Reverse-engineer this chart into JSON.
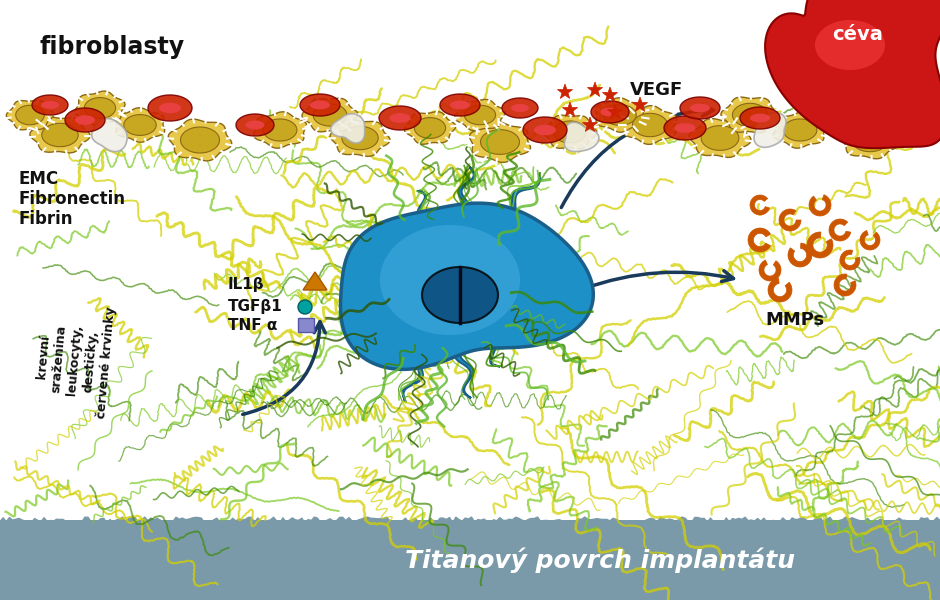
{
  "bg_color": "#ffffff",
  "titanium_color": "#7a9aaa",
  "titanium_label": "Titanový povrch implantátu",
  "label_fibroblasty": "fibroblasty",
  "label_emc": "EMC",
  "label_fibronectin": "Fibronectin",
  "label_fibrin": "Fibrin",
  "label_vegf": "VEGF",
  "label_ceva": "céva",
  "label_mmps": "MMPs",
  "label_il1b": "IL1β",
  "label_tgfb1": "TGFβ1",
  "label_tnfa": "TNF α",
  "cell_color": "#1e90c8",
  "cell_outline": "#1a5f8a",
  "nucleus_color": "#0a4a7a",
  "arrow_color": "#1a3a5c",
  "vegf_star_color": "#cc2200",
  "mmp_color": "#cc5500",
  "platelet_color": "#e8c84a"
}
